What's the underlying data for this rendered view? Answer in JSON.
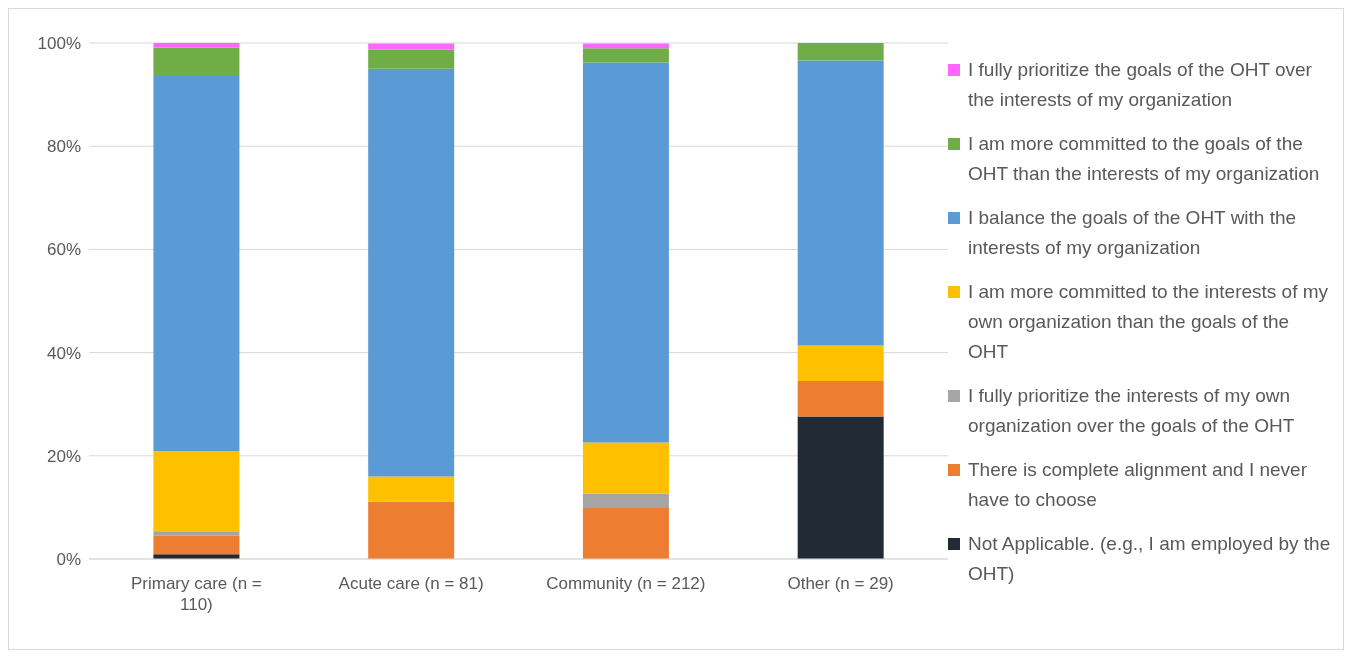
{
  "chart_data": {
    "type": "bar",
    "stacked": true,
    "categories": [
      "Primary care (n = 110)",
      "Acute care (n = 81)",
      "Community (n = 212)",
      "Other (n = 29)"
    ],
    "series": [
      {
        "name": "Not Applicable. (e.g., I am employed by the OHT)",
        "color": "#222a35",
        "values": [
          0.9,
          0,
          0,
          27.6
        ]
      },
      {
        "name": "There is complete alignment and I never have to choose",
        "color": "#ed7d31",
        "values": [
          3.6,
          11.1,
          9.9,
          6.9
        ]
      },
      {
        "name": "I fully prioritize the interests of my own organization over the goals of the OHT",
        "color": "#a5a5a5",
        "values": [
          0.9,
          0,
          2.8,
          0
        ]
      },
      {
        "name": "I am more committed to the interests of my own organization than the goals of the OHT",
        "color": "#ffc000",
        "values": [
          15.5,
          4.9,
          9.9,
          6.9
        ]
      },
      {
        "name": "I balance the goals of the OHT with the interests of my organization",
        "color": "#5b9bd5",
        "values": [
          72.7,
          79.0,
          73.6,
          55.2
        ]
      },
      {
        "name": "I am more committed to the goals of the OHT than the interests of my organization",
        "color": "#70ad47",
        "values": [
          5.5,
          3.7,
          2.8,
          3.4
        ]
      },
      {
        "name": "I fully prioritize the goals of the OHT over the interests of my organization",
        "color": "#ff66ff",
        "values": [
          0.9,
          1.2,
          0.9,
          0
        ]
      }
    ],
    "ylim": [
      0,
      100
    ],
    "yticks": [
      {
        "value": 0,
        "label": "0%"
      },
      {
        "value": 20,
        "label": "20%"
      },
      {
        "value": 40,
        "label": "40%"
      },
      {
        "value": 60,
        "label": "60%"
      },
      {
        "value": 80,
        "label": "80%"
      },
      {
        "value": 100,
        "label": "100%"
      }
    ],
    "grid": "y",
    "legend": "right"
  }
}
